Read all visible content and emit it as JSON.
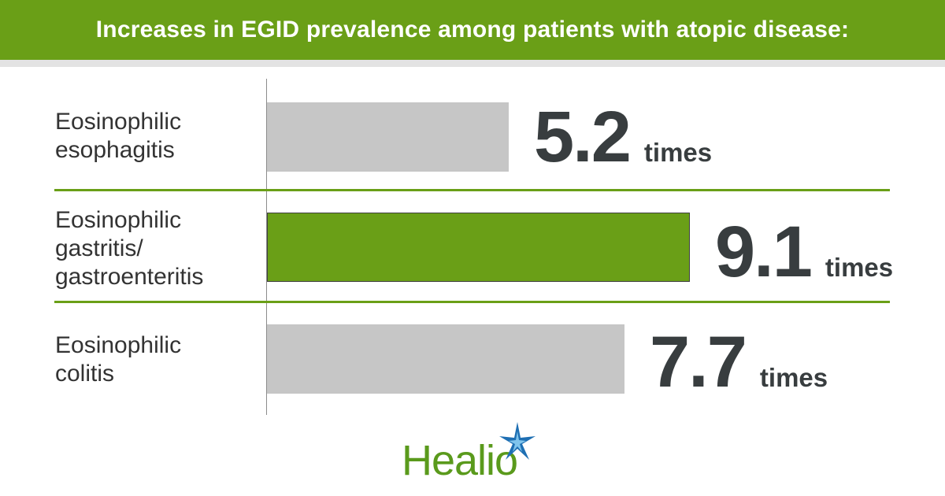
{
  "header": {
    "title": "Increases in EGID prevalence among patients with atopic disease:"
  },
  "colors": {
    "accent": "#6a9f17",
    "bar_default": "#c6c6c6",
    "value_text": "#383d3f",
    "logo_blue": "#1e6fb3"
  },
  "chart_data": {
    "type": "bar",
    "orientation": "horizontal",
    "title": "Increases in EGID prevalence among patients with atopic disease:",
    "categories": [
      "Eosinophilic esophagitis",
      "Eosinophilic gastritis/ gastroenteritis",
      "Eosinophilic colitis"
    ],
    "values": [
      5.2,
      9.1,
      7.7
    ],
    "value_labels": [
      "5.2",
      "9.1",
      "7.7"
    ],
    "unit_label": "times",
    "highlighted_index": 1,
    "xlim": [
      0,
      10
    ],
    "xlabel": "",
    "ylabel": "",
    "grid": false
  },
  "rows": [
    {
      "label_lines": [
        "Eosinophilic",
        "esophagitis"
      ],
      "value": "5.2",
      "unit": "times"
    },
    {
      "label_lines": [
        "Eosinophilic",
        "gastritis/",
        "gastroenteritis"
      ],
      "value": "9.1",
      "unit": "times"
    },
    {
      "label_lines": [
        "Eosinophilic",
        "colitis"
      ],
      "value": "7.7",
      "unit": "times"
    }
  ],
  "logo": {
    "text": "Healio",
    "icon": "star-icon"
  }
}
